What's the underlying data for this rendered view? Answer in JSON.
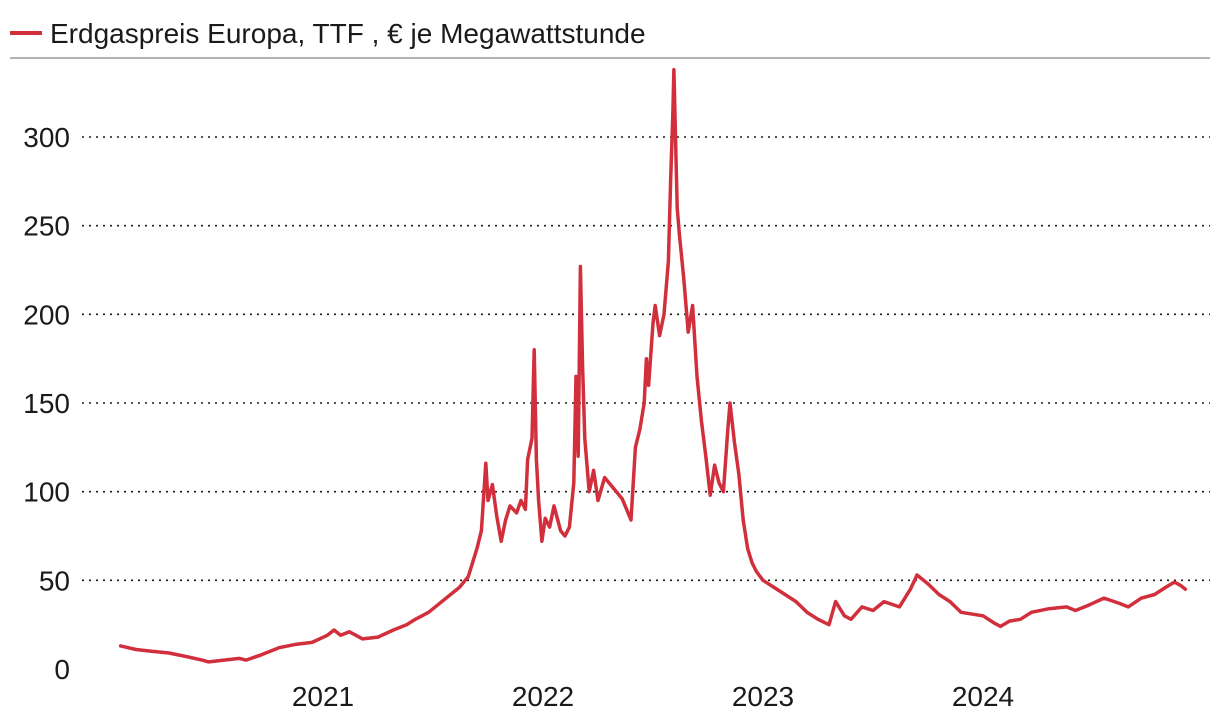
{
  "chart_data": {
    "type": "line",
    "title": "",
    "xlabel": "",
    "ylabel": "",
    "legend_position": "top-left",
    "grid": true,
    "ylim": [
      0,
      340
    ],
    "xlim": [
      2020.0,
      2025.0
    ],
    "yticks": [
      0,
      50,
      100,
      150,
      200,
      250,
      300
    ],
    "ytick_labels": [
      "0",
      "50",
      "100",
      "150",
      "200",
      "250",
      "300"
    ],
    "xticks": [
      2021.0,
      2022.0,
      2023.0,
      2024.0
    ],
    "xtick_labels": [
      "2021",
      "2022",
      "2023",
      "2024"
    ],
    "series": [
      {
        "name": "Erdgaspreis Europa, TTF , € je Megawattstunde",
        "color": "#d22f3c",
        "points": [
          [
            2020.08,
            13
          ],
          [
            2020.15,
            11
          ],
          [
            2020.22,
            10
          ],
          [
            2020.3,
            9
          ],
          [
            2020.38,
            7
          ],
          [
            2020.45,
            5
          ],
          [
            2020.48,
            4
          ],
          [
            2020.55,
            5
          ],
          [
            2020.62,
            6
          ],
          [
            2020.65,
            5
          ],
          [
            2020.72,
            8
          ],
          [
            2020.8,
            12
          ],
          [
            2020.88,
            14
          ],
          [
            2020.95,
            15
          ],
          [
            2021.02,
            19
          ],
          [
            2021.05,
            22
          ],
          [
            2021.08,
            19
          ],
          [
            2021.12,
            21
          ],
          [
            2021.18,
            17
          ],
          [
            2021.25,
            18
          ],
          [
            2021.32,
            22
          ],
          [
            2021.38,
            25
          ],
          [
            2021.42,
            28
          ],
          [
            2021.48,
            32
          ],
          [
            2021.52,
            36
          ],
          [
            2021.58,
            42
          ],
          [
            2021.62,
            46
          ],
          [
            2021.66,
            52
          ],
          [
            2021.7,
            68
          ],
          [
            2021.72,
            78
          ],
          [
            2021.74,
            116
          ],
          [
            2021.75,
            95
          ],
          [
            2021.77,
            104
          ],
          [
            2021.79,
            86
          ],
          [
            2021.81,
            72
          ],
          [
            2021.83,
            84
          ],
          [
            2021.85,
            92
          ],
          [
            2021.88,
            88
          ],
          [
            2021.9,
            95
          ],
          [
            2021.92,
            90
          ],
          [
            2021.93,
            118
          ],
          [
            2021.95,
            130
          ],
          [
            2021.96,
            180
          ],
          [
            2021.97,
            118
          ],
          [
            2021.98,
            95
          ],
          [
            2021.995,
            72
          ],
          [
            2022.01,
            85
          ],
          [
            2022.03,
            80
          ],
          [
            2022.05,
            92
          ],
          [
            2022.08,
            78
          ],
          [
            2022.1,
            75
          ],
          [
            2022.12,
            80
          ],
          [
            2022.14,
            105
          ],
          [
            2022.145,
            135
          ],
          [
            2022.15,
            165
          ],
          [
            2022.16,
            120
          ],
          [
            2022.17,
            227
          ],
          [
            2022.18,
            170
          ],
          [
            2022.19,
            130
          ],
          [
            2022.21,
            100
          ],
          [
            2022.23,
            112
          ],
          [
            2022.25,
            95
          ],
          [
            2022.28,
            108
          ],
          [
            2022.32,
            102
          ],
          [
            2022.36,
            96
          ],
          [
            2022.4,
            84
          ],
          [
            2022.42,
            125
          ],
          [
            2022.44,
            135
          ],
          [
            2022.46,
            150
          ],
          [
            2022.47,
            175
          ],
          [
            2022.48,
            160
          ],
          [
            2022.5,
            195
          ],
          [
            2022.51,
            205
          ],
          [
            2022.53,
            188
          ],
          [
            2022.55,
            200
          ],
          [
            2022.57,
            230
          ],
          [
            2022.58,
            275
          ],
          [
            2022.59,
            312
          ],
          [
            2022.595,
            338
          ],
          [
            2022.61,
            260
          ],
          [
            2022.62,
            245
          ],
          [
            2022.64,
            220
          ],
          [
            2022.66,
            190
          ],
          [
            2022.68,
            205
          ],
          [
            2022.7,
            165
          ],
          [
            2022.72,
            140
          ],
          [
            2022.74,
            120
          ],
          [
            2022.76,
            98
          ],
          [
            2022.78,
            115
          ],
          [
            2022.8,
            105
          ],
          [
            2022.82,
            100
          ],
          [
            2022.84,
            135
          ],
          [
            2022.85,
            150
          ],
          [
            2022.87,
            128
          ],
          [
            2022.89,
            110
          ],
          [
            2022.91,
            84
          ],
          [
            2022.93,
            68
          ],
          [
            2022.95,
            60
          ],
          [
            2022.97,
            55
          ],
          [
            2023.0,
            50
          ],
          [
            2023.05,
            46
          ],
          [
            2023.1,
            42
          ],
          [
            2023.15,
            38
          ],
          [
            2023.2,
            32
          ],
          [
            2023.25,
            28
          ],
          [
            2023.3,
            25
          ],
          [
            2023.33,
            38
          ],
          [
            2023.37,
            30
          ],
          [
            2023.4,
            28
          ],
          [
            2023.45,
            35
          ],
          [
            2023.5,
            33
          ],
          [
            2023.55,
            38
          ],
          [
            2023.62,
            35
          ],
          [
            2023.67,
            45
          ],
          [
            2023.7,
            53
          ],
          [
            2023.75,
            48
          ],
          [
            2023.8,
            42
          ],
          [
            2023.85,
            38
          ],
          [
            2023.9,
            32
          ],
          [
            2024.0,
            30
          ],
          [
            2024.05,
            26
          ],
          [
            2024.08,
            24
          ],
          [
            2024.12,
            27
          ],
          [
            2024.17,
            28
          ],
          [
            2024.22,
            32
          ],
          [
            2024.3,
            34
          ],
          [
            2024.38,
            35
          ],
          [
            2024.42,
            33
          ],
          [
            2024.48,
            36
          ],
          [
            2024.55,
            40
          ],
          [
            2024.62,
            37
          ],
          [
            2024.66,
            35
          ],
          [
            2024.72,
            40
          ],
          [
            2024.78,
            42
          ],
          [
            2024.83,
            46
          ],
          [
            2024.87,
            49
          ],
          [
            2024.9,
            47
          ],
          [
            2024.92,
            45
          ]
        ]
      }
    ]
  }
}
